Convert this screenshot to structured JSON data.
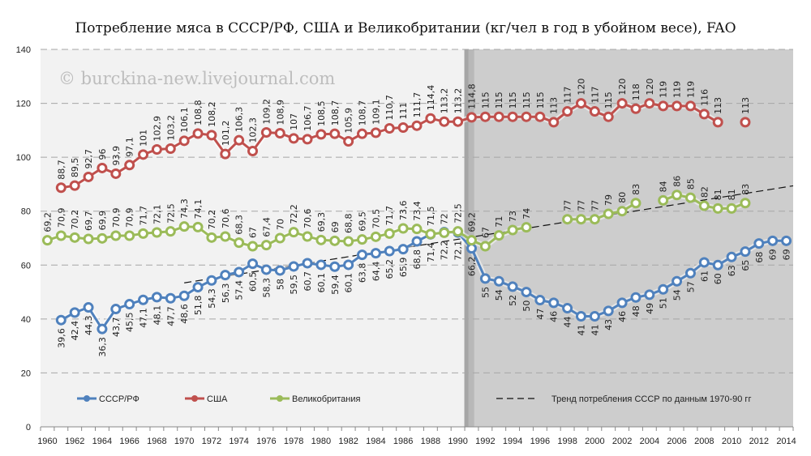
{
  "chart_data": {
    "type": "line",
    "title": "Потребление мяса в СССР/РФ, США и Великобритании (кг/чел в год в убойном весе), FAO",
    "watermark": "© burckina-new.livejournal.com",
    "xlabel": "",
    "ylabel": "",
    "ylim": [
      0,
      140
    ],
    "yticks": [
      0,
      20,
      40,
      60,
      80,
      100,
      120,
      140
    ],
    "x_start": 1960,
    "x_end": 2014,
    "xtick_labels": [
      "1960",
      "1962",
      "1964",
      "1966",
      "1968",
      "1970",
      "1972",
      "1974",
      "1976",
      "1978",
      "1980",
      "1982",
      "1984",
      "1986",
      "1988",
      "1990",
      "1992",
      "1994",
      "1996",
      "1998",
      "2000",
      "2002",
      "2004",
      "2006",
      "2008",
      "2010",
      "2012",
      "2014"
    ],
    "grid": true,
    "shaded_period_start": 1991,
    "legend_placement": "bottom",
    "series": [
      {
        "name": "СССР/РФ",
        "color": "#4f81bd",
        "label_pos": "below",
        "values": [
          null,
          39.6,
          42.4,
          44.3,
          36.3,
          43.7,
          45.5,
          47.1,
          48.1,
          47.7,
          48.6,
          51.8,
          54.3,
          56.3,
          57.4,
          60.5,
          58.3,
          58,
          59.5,
          60.7,
          60.1,
          59.4,
          60.1,
          63.8,
          64.4,
          65.2,
          65.9,
          68.8,
          71.4,
          72.2,
          72.1,
          66.2,
          55,
          54,
          52,
          50,
          47,
          46,
          44,
          41,
          41,
          43,
          46,
          48,
          49,
          51,
          54,
          57,
          61,
          60,
          63,
          65,
          68,
          69,
          69
        ]
      },
      {
        "name": "США",
        "color": "#c0504d",
        "label_pos": "above",
        "values": [
          null,
          88.7,
          89.5,
          92.7,
          96,
          93.9,
          97.1,
          101,
          102.9,
          103.2,
          106.1,
          108.8,
          108.2,
          101.2,
          106.3,
          102.3,
          109.2,
          108.9,
          107,
          106.7,
          108.5,
          108.7,
          105.9,
          108.7,
          109.1,
          110.7,
          111,
          111.7,
          114.4,
          113.2,
          113.2,
          114.8,
          115,
          115,
          115,
          115,
          115,
          113,
          117,
          120,
          117,
          115,
          120,
          118,
          120,
          119,
          119,
          119,
          116,
          113,
          null,
          113,
          null,
          null,
          null
        ]
      },
      {
        "name": "Великобритания",
        "color": "#9bbb59",
        "label_pos": "above",
        "values": [
          69.2,
          70.9,
          70.2,
          69.7,
          69.9,
          70.9,
          70.9,
          71.7,
          72.1,
          72.5,
          74.3,
          74.1,
          70.2,
          70.6,
          68.3,
          67,
          67.4,
          70,
          72.2,
          70.6,
          69.3,
          69,
          68.8,
          69.5,
          70.5,
          71.7,
          73.6,
          73.4,
          71.5,
          72,
          72.5,
          69.2,
          67,
          71,
          73,
          74,
          null,
          null,
          77,
          77,
          77,
          79,
          80,
          83,
          null,
          84,
          86,
          85,
          82,
          81,
          81,
          83,
          null,
          null,
          null
        ]
      }
    ],
    "trend": {
      "name": "Тренд потребления СССР по данным 1970-90 гг",
      "from": [
        1970,
        53.4
      ],
      "to": [
        2014,
        89
      ]
    }
  }
}
